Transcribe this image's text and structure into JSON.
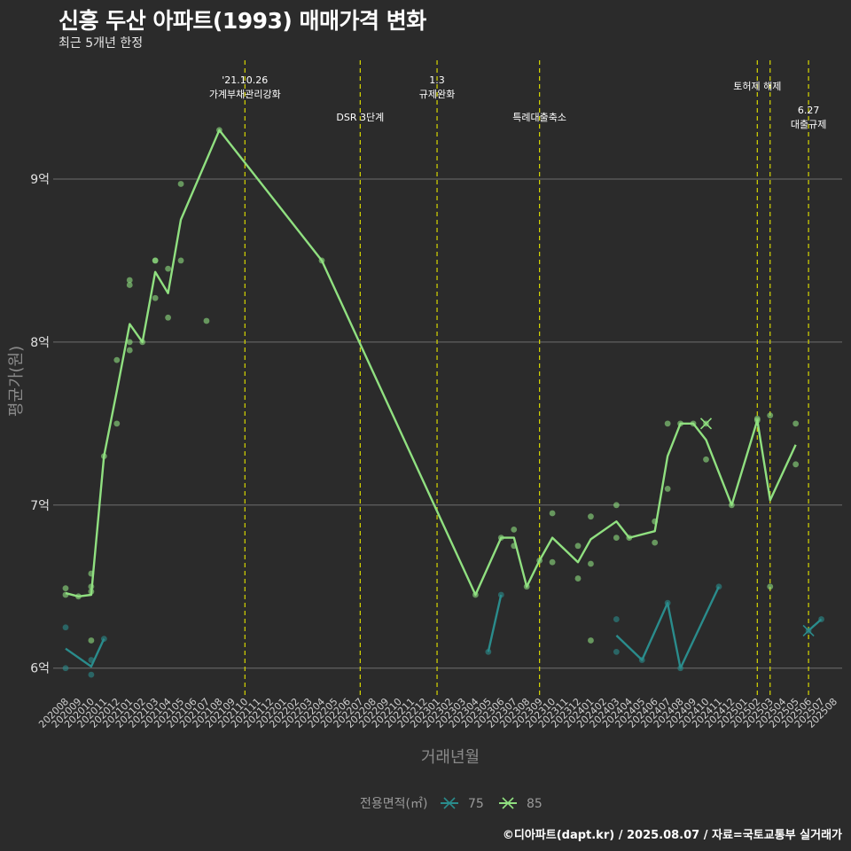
{
  "chart_data": {
    "type": "line",
    "title": "신흥 두산 아파트(1993) 매매가격 변화",
    "subtitle": "최근 5개년 한정",
    "xlabel": "거래년월",
    "ylabel": "평균가(원)",
    "caption": "©디아파트(dapt.kr) / 2025.08.07 / 자료=국토교통부 실거래가",
    "categories": [
      "202008",
      "202009",
      "202010",
      "202011",
      "202012",
      "202101",
      "202102",
      "202103",
      "202104",
      "202105",
      "202106",
      "202107",
      "202108",
      "202109",
      "202110",
      "202111",
      "202112",
      "202201",
      "202202",
      "202203",
      "202204",
      "202205",
      "202206",
      "202207",
      "202208",
      "202209",
      "202210",
      "202211",
      "202212",
      "202301",
      "202302",
      "202303",
      "202304",
      "202305",
      "202306",
      "202307",
      "202308",
      "202309",
      "202310",
      "202311",
      "202312",
      "202401",
      "202402",
      "202403",
      "202404",
      "202405",
      "202406",
      "202407",
      "202408",
      "202409",
      "202410",
      "202411",
      "202412",
      "202501",
      "202502",
      "202503",
      "202504",
      "202505",
      "202506",
      "202507",
      "202508"
    ],
    "y_ticks": [
      {
        "value": 6,
        "label": "6억"
      },
      {
        "value": 7,
        "label": "7억"
      },
      {
        "value": 8,
        "label": "8억"
      },
      {
        "value": 9,
        "label": "9억"
      }
    ],
    "ylim": [
      5.83,
      9.75
    ],
    "grid": true,
    "legend": {
      "title": "전용면적(㎡)",
      "position": "bottom"
    },
    "series": [
      {
        "name": "75",
        "color": "#2a8c8c",
        "segments": [
          [
            [
              "202008",
              6.12
            ],
            [
              "202010",
              6.01
            ],
            [
              "202011",
              6.18
            ]
          ],
          [
            [
              "202305",
              6.1
            ],
            [
              "202306",
              6.45
            ]
          ],
          [
            [
              "202403",
              6.2
            ],
            [
              "202405",
              6.05
            ],
            [
              "202407",
              6.4
            ],
            [
              "202408",
              6.0
            ],
            [
              "202411",
              6.5
            ]
          ],
          [
            [
              "202506",
              6.23
            ],
            [
              "202507",
              6.3
            ]
          ]
        ],
        "points": [
          [
            "202008",
            6.25
          ],
          [
            "202008",
            6.0
          ],
          [
            "202010",
            6.05
          ],
          [
            "202010",
            5.96
          ],
          [
            "202011",
            6.18
          ],
          [
            "202305",
            6.1
          ],
          [
            "202306",
            6.45
          ],
          [
            "202403",
            6.3
          ],
          [
            "202403",
            6.1
          ],
          [
            "202405",
            6.05
          ],
          [
            "202407",
            6.4
          ],
          [
            "202408",
            6.0
          ],
          [
            "202411",
            6.5
          ],
          [
            "202506",
            6.23
          ],
          [
            "202507",
            6.3
          ]
        ],
        "cross_points": [
          [
            "202506",
            6.23
          ]
        ]
      },
      {
        "name": "85",
        "color": "#90e080",
        "segments": [
          [
            [
              "202008",
              6.46
            ],
            [
              "202009",
              6.44
            ],
            [
              "202010",
              6.45
            ],
            [
              "202011",
              7.3
            ],
            [
              "202012",
              7.7
            ],
            [
              "202101",
              8.11
            ],
            [
              "202102",
              8.0
            ],
            [
              "202103",
              8.43
            ],
            [
              "202104",
              8.3
            ],
            [
              "202105",
              8.75
            ],
            [
              "202108",
              9.3
            ],
            [
              "202204",
              8.5
            ],
            [
              "202304",
              6.45
            ],
            [
              "202306",
              6.8
            ],
            [
              "202307",
              6.8
            ],
            [
              "202308",
              6.5
            ],
            [
              "202309",
              6.66
            ],
            [
              "202310",
              6.8
            ],
            [
              "202312",
              6.65
            ],
            [
              "202401",
              6.79
            ],
            [
              "202403",
              6.9
            ],
            [
              "202404",
              6.8
            ],
            [
              "202406",
              6.84
            ],
            [
              "202407",
              7.3
            ],
            [
              "202408",
              7.5
            ],
            [
              "202409",
              7.5
            ],
            [
              "202410",
              7.4
            ],
            [
              "202412",
              7.0
            ],
            [
              "202502",
              7.52
            ],
            [
              "202503",
              7.03
            ],
            [
              "202505",
              7.37
            ]
          ]
        ],
        "points": [
          [
            "202008",
            6.49
          ],
          [
            "202008",
            6.45
          ],
          [
            "202009",
            6.44
          ],
          [
            "202010",
            6.58
          ],
          [
            "202010",
            6.5
          ],
          [
            "202010",
            6.47
          ],
          [
            "202010",
            6.17
          ],
          [
            "202011",
            7.3
          ],
          [
            "202012",
            7.89
          ],
          [
            "202012",
            7.5
          ],
          [
            "202101",
            8.38
          ],
          [
            "202101",
            8.35
          ],
          [
            "202101",
            8.0
          ],
          [
            "202101",
            7.95
          ],
          [
            "202102",
            8.0
          ],
          [
            "202103",
            8.5
          ],
          [
            "202103",
            8.5
          ],
          [
            "202103",
            8.27
          ],
          [
            "202104",
            8.45
          ],
          [
            "202104",
            8.15
          ],
          [
            "202105",
            8.97
          ],
          [
            "202105",
            8.5
          ],
          [
            "202107",
            8.13
          ],
          [
            "202108",
            9.3
          ],
          [
            "202204",
            8.5
          ],
          [
            "202304",
            6.45
          ],
          [
            "202306",
            6.8
          ],
          [
            "202307",
            6.85
          ],
          [
            "202307",
            6.75
          ],
          [
            "202308",
            6.5
          ],
          [
            "202309",
            6.66
          ],
          [
            "202310",
            6.95
          ],
          [
            "202310",
            6.65
          ],
          [
            "202312",
            6.75
          ],
          [
            "202312",
            6.55
          ],
          [
            "202401",
            6.93
          ],
          [
            "202401",
            6.64
          ],
          [
            "202401",
            6.17
          ],
          [
            "202403",
            7.0
          ],
          [
            "202403",
            6.8
          ],
          [
            "202404",
            6.8
          ],
          [
            "202406",
            6.9
          ],
          [
            "202406",
            6.77
          ],
          [
            "202407",
            7.5
          ],
          [
            "202407",
            7.1
          ],
          [
            "202408",
            7.5
          ],
          [
            "202409",
            7.5
          ],
          [
            "202410",
            7.5
          ],
          [
            "202410",
            7.28
          ],
          [
            "202412",
            7.0
          ],
          [
            "202502",
            7.53
          ],
          [
            "202502",
            7.52
          ],
          [
            "202503",
            7.55
          ],
          [
            "202503",
            6.5
          ],
          [
            "202505",
            7.5
          ],
          [
            "202505",
            7.25
          ]
        ],
        "cross_points": [
          [
            "202410",
            7.5
          ]
        ]
      }
    ],
    "events": [
      {
        "x": "202110",
        "lines": [
          "'21.10.26",
          "가계부채관리강화"
        ]
      },
      {
        "x": "202207",
        "lines": [
          "DSR 3단계"
        ]
      },
      {
        "x": "202301",
        "lines": [
          "1.3",
          "규제완화"
        ]
      },
      {
        "x": "202309",
        "lines": [
          "특례대출축소"
        ]
      },
      {
        "x": "202502",
        "lines": [
          "토허제 해제"
        ]
      },
      {
        "x": "202503",
        "lines": [
          ""
        ]
      },
      {
        "x": "202506",
        "lines": [
          "6.27",
          "대출규제"
        ]
      }
    ]
  }
}
